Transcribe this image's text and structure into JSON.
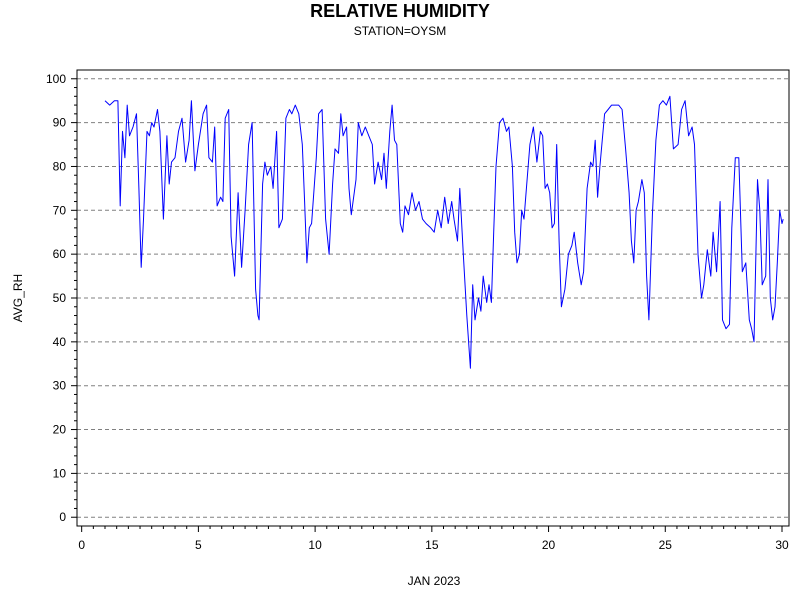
{
  "chart_data": {
    "type": "line",
    "title": "RELATIVE HUMIDITY",
    "subtitle": "STATION=OYSM",
    "xlabel": "JAN 2023",
    "ylabel": "AVG_RH",
    "xlim": [
      -0.2,
      30.3
    ],
    "ylim": [
      -2,
      102
    ],
    "x_ticks": [
      0,
      5,
      10,
      15,
      20,
      25,
      30
    ],
    "x_tick_labels": [
      "0",
      "5",
      "10",
      "15",
      "20",
      "25",
      "30"
    ],
    "y_ticks": [
      0,
      10,
      20,
      30,
      40,
      50,
      60,
      70,
      80,
      90,
      100
    ],
    "y_tick_labels": [
      "0",
      "10",
      "20",
      "30",
      "40",
      "50",
      "60",
      "70",
      "80",
      "90",
      "100"
    ],
    "x_minor_step": 0.5,
    "y_minor_step": 2,
    "grid": "horizontal-dashed",
    "line_color": "#0000ff",
    "grid_color": "#808080",
    "series": [
      {
        "values": [
          [
            1.0,
            95
          ],
          [
            1.2,
            94
          ],
          [
            1.4,
            95
          ],
          [
            1.55,
            95
          ],
          [
            1.65,
            71
          ],
          [
            1.75,
            88
          ],
          [
            1.85,
            82
          ],
          [
            1.95,
            94
          ],
          [
            2.05,
            87
          ],
          [
            2.2,
            89
          ],
          [
            2.35,
            92
          ],
          [
            2.45,
            75
          ],
          [
            2.55,
            57
          ],
          [
            2.65,
            68
          ],
          [
            2.8,
            88
          ],
          [
            2.9,
            87
          ],
          [
            3.0,
            90
          ],
          [
            3.1,
            89
          ],
          [
            3.25,
            93
          ],
          [
            3.35,
            88
          ],
          [
            3.5,
            68
          ],
          [
            3.65,
            87
          ],
          [
            3.75,
            76
          ],
          [
            3.85,
            81
          ],
          [
            4.0,
            82
          ],
          [
            4.15,
            88
          ],
          [
            4.3,
            91
          ],
          [
            4.45,
            81
          ],
          [
            4.6,
            86
          ],
          [
            4.7,
            95
          ],
          [
            4.85,
            79
          ],
          [
            5.0,
            85
          ],
          [
            5.2,
            92
          ],
          [
            5.35,
            94
          ],
          [
            5.45,
            82
          ],
          [
            5.6,
            81
          ],
          [
            5.7,
            89
          ],
          [
            5.8,
            71
          ],
          [
            5.95,
            73
          ],
          [
            6.05,
            72
          ],
          [
            6.15,
            91
          ],
          [
            6.3,
            93
          ],
          [
            6.4,
            64
          ],
          [
            6.55,
            55
          ],
          [
            6.7,
            74
          ],
          [
            6.85,
            57
          ],
          [
            7.0,
            70
          ],
          [
            7.15,
            85
          ],
          [
            7.3,
            90
          ],
          [
            7.45,
            52
          ],
          [
            7.55,
            46
          ],
          [
            7.6,
            45
          ],
          [
            7.75,
            76
          ],
          [
            7.85,
            81
          ],
          [
            7.95,
            78
          ],
          [
            8.1,
            80
          ],
          [
            8.2,
            75
          ],
          [
            8.35,
            88
          ],
          [
            8.45,
            66
          ],
          [
            8.6,
            68
          ],
          [
            8.75,
            91
          ],
          [
            8.9,
            93
          ],
          [
            9.0,
            92
          ],
          [
            9.15,
            94
          ],
          [
            9.3,
            92
          ],
          [
            9.45,
            85
          ],
          [
            9.55,
            72
          ],
          [
            9.65,
            58
          ],
          [
            9.75,
            66
          ],
          [
            9.85,
            67
          ],
          [
            10.05,
            82
          ],
          [
            10.15,
            92
          ],
          [
            10.3,
            93
          ],
          [
            10.45,
            68
          ],
          [
            10.6,
            60
          ],
          [
            10.75,
            76
          ],
          [
            10.85,
            84
          ],
          [
            11.0,
            83
          ],
          [
            11.1,
            92
          ],
          [
            11.2,
            87
          ],
          [
            11.35,
            89
          ],
          [
            11.45,
            75
          ],
          [
            11.55,
            69
          ],
          [
            11.75,
            77
          ],
          [
            11.85,
            90
          ],
          [
            12.0,
            87
          ],
          [
            12.15,
            89
          ],
          [
            12.3,
            87
          ],
          [
            12.45,
            85
          ],
          [
            12.55,
            76
          ],
          [
            12.7,
            81
          ],
          [
            12.85,
            77
          ],
          [
            12.95,
            83
          ],
          [
            13.05,
            75
          ],
          [
            13.2,
            88
          ],
          [
            13.3,
            94
          ],
          [
            13.4,
            86
          ],
          [
            13.5,
            85
          ],
          [
            13.65,
            67
          ],
          [
            13.75,
            65
          ],
          [
            13.85,
            71
          ],
          [
            14.0,
            69
          ],
          [
            14.15,
            74
          ],
          [
            14.3,
            70
          ],
          [
            14.45,
            72
          ],
          [
            14.6,
            68
          ],
          [
            14.75,
            67
          ],
          [
            14.95,
            66
          ],
          [
            15.1,
            65
          ],
          [
            15.25,
            70
          ],
          [
            15.4,
            66
          ],
          [
            15.55,
            73
          ],
          [
            15.7,
            67
          ],
          [
            15.85,
            72
          ],
          [
            15.95,
            68
          ],
          [
            16.1,
            63
          ],
          [
            16.2,
            75
          ],
          [
            16.35,
            60
          ],
          [
            16.5,
            46
          ],
          [
            16.65,
            34
          ],
          [
            16.75,
            53
          ],
          [
            16.85,
            45
          ],
          [
            17.0,
            50
          ],
          [
            17.1,
            47
          ],
          [
            17.2,
            55
          ],
          [
            17.35,
            49
          ],
          [
            17.45,
            53
          ],
          [
            17.55,
            49
          ],
          [
            17.65,
            65
          ],
          [
            17.75,
            80
          ],
          [
            17.9,
            90
          ],
          [
            18.05,
            91
          ],
          [
            18.2,
            88
          ],
          [
            18.3,
            89
          ],
          [
            18.45,
            80
          ],
          [
            18.55,
            65
          ],
          [
            18.65,
            58
          ],
          [
            18.75,
            60
          ],
          [
            18.85,
            70
          ],
          [
            18.95,
            68
          ],
          [
            19.05,
            75
          ],
          [
            19.2,
            85
          ],
          [
            19.35,
            89
          ],
          [
            19.5,
            81
          ],
          [
            19.65,
            88
          ],
          [
            19.75,
            87
          ],
          [
            19.85,
            75
          ],
          [
            19.95,
            76
          ],
          [
            20.05,
            74
          ],
          [
            20.15,
            66
          ],
          [
            20.25,
            67
          ],
          [
            20.35,
            85
          ],
          [
            20.45,
            63
          ],
          [
            20.55,
            48
          ],
          [
            20.7,
            52
          ],
          [
            20.85,
            60
          ],
          [
            21.0,
            62
          ],
          [
            21.1,
            65
          ],
          [
            21.25,
            58
          ],
          [
            21.4,
            53
          ],
          [
            21.5,
            56
          ],
          [
            21.65,
            75
          ],
          [
            21.8,
            81
          ],
          [
            21.9,
            80
          ],
          [
            22.0,
            86
          ],
          [
            22.1,
            73
          ],
          [
            22.2,
            80
          ],
          [
            22.4,
            92
          ],
          [
            22.55,
            93
          ],
          [
            22.7,
            94
          ],
          [
            22.85,
            94
          ],
          [
            23.0,
            94
          ],
          [
            23.15,
            93
          ],
          [
            23.3,
            84
          ],
          [
            23.45,
            74
          ],
          [
            23.55,
            63
          ],
          [
            23.65,
            58
          ],
          [
            23.75,
            70
          ],
          [
            23.85,
            72
          ],
          [
            24.0,
            77
          ],
          [
            24.1,
            74
          ],
          [
            24.2,
            55
          ],
          [
            24.3,
            45
          ],
          [
            24.45,
            69
          ],
          [
            24.6,
            86
          ],
          [
            24.75,
            94
          ],
          [
            24.9,
            95
          ],
          [
            25.05,
            94
          ],
          [
            25.2,
            96
          ],
          [
            25.35,
            84
          ],
          [
            25.55,
            85
          ],
          [
            25.7,
            93
          ],
          [
            25.85,
            95
          ],
          [
            26.0,
            87
          ],
          [
            26.15,
            89
          ],
          [
            26.25,
            85
          ],
          [
            26.4,
            60
          ],
          [
            26.55,
            50
          ],
          [
            26.65,
            53
          ],
          [
            26.8,
            61
          ],
          [
            26.95,
            55
          ],
          [
            27.05,
            65
          ],
          [
            27.2,
            56
          ],
          [
            27.35,
            72
          ],
          [
            27.45,
            45
          ],
          [
            27.6,
            43
          ],
          [
            27.75,
            44
          ],
          [
            27.85,
            66
          ],
          [
            28.0,
            82
          ],
          [
            28.15,
            82
          ],
          [
            28.3,
            56
          ],
          [
            28.45,
            58
          ],
          [
            28.6,
            45
          ],
          [
            28.7,
            43
          ],
          [
            28.8,
            40
          ],
          [
            28.95,
            77
          ],
          [
            29.05,
            70
          ],
          [
            29.15,
            53
          ],
          [
            29.3,
            55
          ],
          [
            29.4,
            77
          ],
          [
            29.5,
            50
          ],
          [
            29.6,
            45
          ],
          [
            29.7,
            48
          ],
          [
            29.8,
            58
          ],
          [
            29.9,
            70
          ],
          [
            30.0,
            67
          ],
          [
            30.05,
            68
          ]
        ]
      }
    ]
  }
}
